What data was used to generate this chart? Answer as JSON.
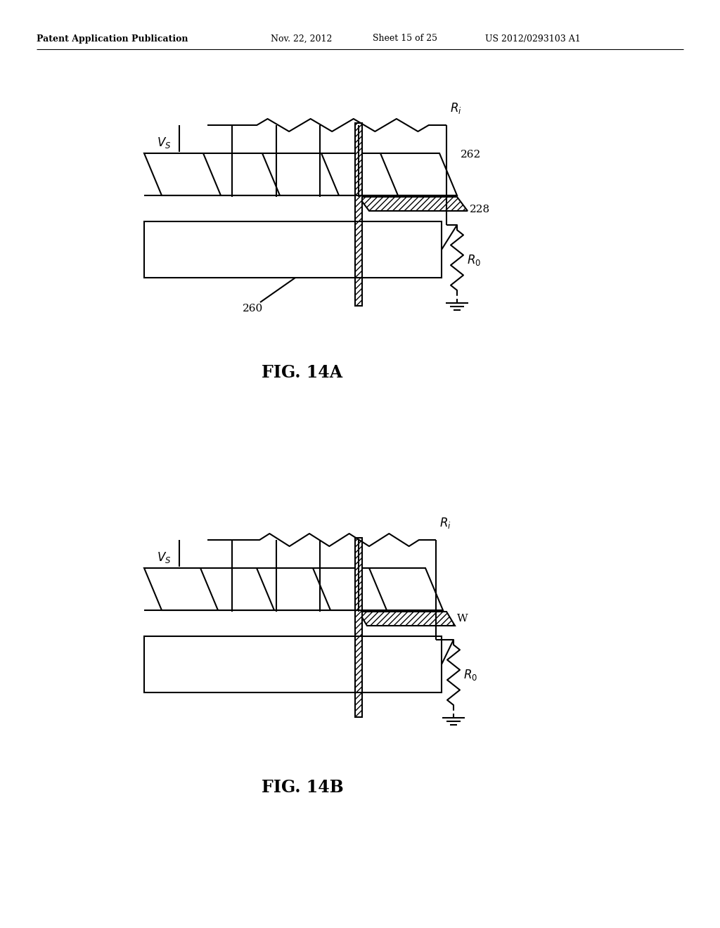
{
  "bg_color": "#ffffff",
  "line_color": "#000000",
  "header_text": "Patent Application Publication",
  "header_date": "Nov. 22, 2012",
  "header_sheet": "Sheet 15 of 25",
  "header_patent": "US 2012/0293103 A1",
  "fig14a_label": "FIG. 14A",
  "fig14b_label": "FIG. 14B",
  "label_262": "262",
  "label_228": "228",
  "label_260": "260",
  "label_Vs": "$V_S$",
  "label_Ri": "$R_i$",
  "label_R0_a": "$R_0$",
  "label_R0_b": "$R_0$",
  "label_W": "W"
}
